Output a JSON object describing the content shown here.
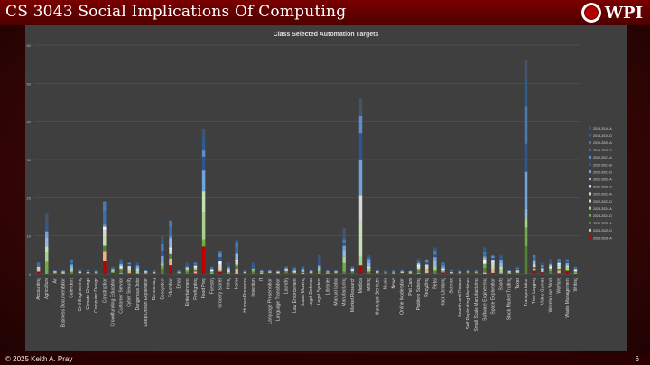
{
  "slide": {
    "title": "CS 3043 Social Implications Of Computing",
    "logo_text": "WPI",
    "footer_left": "© 2025 Keith A. Pray",
    "page_number": "6"
  },
  "chart_data": {
    "type": "bar",
    "stacked": true,
    "title": "Class Selected Automation Targets",
    "xlabel": "",
    "ylabel": "",
    "ylim": [
      0,
      60
    ],
    "yticks": [
      0,
      10,
      20,
      30,
      40,
      50,
      60
    ],
    "grid": true,
    "legend_position": "right",
    "categories": [
      "Accounting",
      "Agriculture",
      "Art",
      "Business Documentation",
      "Calendars",
      "Civil Engineering",
      "Climate Change",
      "Computer Design",
      "Construction",
      "Crowdfunding Education",
      "Customer Service",
      "Cyber Security",
      "Dangerous Jobs",
      "Deep Ocean Exploration",
      "Democracy",
      "Ecosystem",
      "Education",
      "Email",
      "Entertainment",
      "Firefighting",
      "Food Prep",
      "Forestry",
      "Grocery Stores",
      "Hiring",
      "Home",
      "Human Presence",
      "Inventory",
      "IT",
      "Language Preservation",
      "Language Translation",
      "Laundry",
      "Law Enforcement",
      "Lawn Mowing",
      "Legal Defense",
      "Legal System",
      "Libraries",
      "Manual Labor",
      "Manufacturing",
      "Market Research",
      "Medical",
      "Mining",
      "Municipal Services",
      "Music",
      "News",
      "Online Moderation",
      "Pet Care",
      "Problem Solving",
      "Recycling",
      "Retail",
      "Rock Climbing",
      "Science",
      "Search and Rescue",
      "Self Replicating Machines",
      "Small Scale Manufacturing",
      "Software Engineering",
      "Space Exploration",
      "Sports",
      "Stock Market Trading",
      "Taxes",
      "Transportation",
      "Tree Logging",
      "Video Games",
      "Warehouse Work",
      "Warfare",
      "Waste Management",
      "Writing"
    ],
    "totals": [
      3,
      16,
      1,
      1,
      4,
      1,
      1,
      1,
      19,
      2,
      4,
      3,
      3,
      1,
      1,
      10,
      14,
      1,
      3,
      3,
      38,
      2,
      6,
      3,
      9,
      1,
      3,
      1,
      1,
      1,
      2,
      2,
      2,
      1,
      5,
      1,
      1,
      12,
      2,
      46,
      5,
      1,
      1,
      1,
      1,
      1,
      4,
      4,
      7,
      3,
      1,
      1,
      1,
      1,
      7,
      5,
      5,
      1,
      2,
      56,
      5,
      3,
      4,
      4,
      4,
      2
    ],
    "series": [
      {
        "name": "2018-2019-A",
        "color": "#44546a"
      },
      {
        "name": "2018-2019-D",
        "color": "#2e5a8c"
      },
      {
        "name": "2019-2020-A",
        "color": "#4a7ab5"
      },
      {
        "name": "2019-2020-D",
        "color": "#3b6fa8"
      },
      {
        "name": "2020-2021-A",
        "color": "#5b8fcc"
      },
      {
        "name": "2020-2021-B",
        "color": "#2f5597"
      },
      {
        "name": "2020-2021-D",
        "color": "#6fa3dc"
      },
      {
        "name": "2021-2022-A",
        "color": "#8fb8e6"
      },
      {
        "name": "2021-2022-D",
        "color": "#f2f2f2"
      },
      {
        "name": "2022-2023-A",
        "color": "#d9d9d9"
      },
      {
        "name": "2022-2023-D",
        "color": "#c5e0b4"
      },
      {
        "name": "2023-2024-A",
        "color": "#a9d18e"
      },
      {
        "name": "2023-2024-D",
        "color": "#70ad47"
      },
      {
        "name": "2024-2025-A",
        "color": "#548235"
      },
      {
        "name": "2024-2025-D",
        "color": "#f4b183"
      },
      {
        "name": "2025-2026-A",
        "color": "#c00000"
      }
    ]
  }
}
